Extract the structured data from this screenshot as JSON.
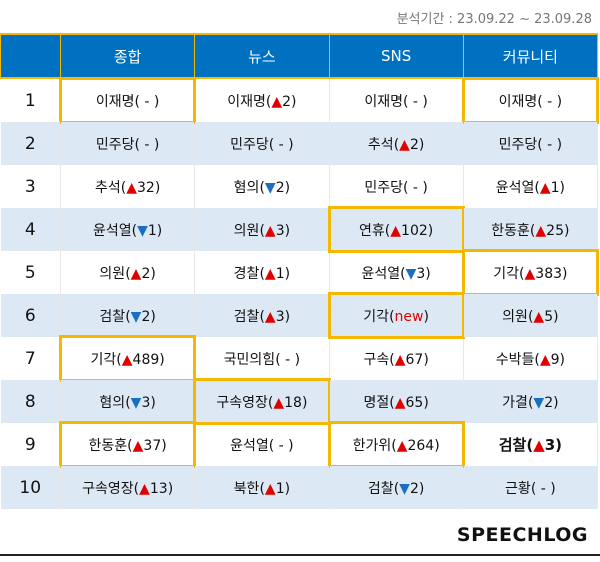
{
  "period": "분석기간 : 23.09.22 ~ 23.09.28",
  "headers": [
    "",
    "종합",
    "뉴스",
    "SNS",
    "커뮤니티"
  ],
  "rows": [
    {
      "rank": "1",
      "cells": [
        {
          "t": "이재명",
          "d": "none",
          "v": "",
          "hl": true
        },
        {
          "t": "이재명",
          "d": "up",
          "v": "2"
        },
        {
          "t": "이재명",
          "d": "none",
          "v": ""
        },
        {
          "t": "이재명",
          "d": "none",
          "v": "",
          "hl": true
        }
      ]
    },
    {
      "rank": "2",
      "cells": [
        {
          "t": "민주당",
          "d": "none",
          "v": ""
        },
        {
          "t": "민주당",
          "d": "none",
          "v": ""
        },
        {
          "t": "추석",
          "d": "up",
          "v": "2"
        },
        {
          "t": "민주당",
          "d": "none",
          "v": ""
        }
      ]
    },
    {
      "rank": "3",
      "cells": [
        {
          "t": "추석",
          "d": "up",
          "v": "32"
        },
        {
          "t": "혐의",
          "d": "down",
          "v": "2"
        },
        {
          "t": "민주당",
          "d": "none",
          "v": ""
        },
        {
          "t": "윤석열",
          "d": "up",
          "v": "1"
        }
      ]
    },
    {
      "rank": "4",
      "cells": [
        {
          "t": "윤석열",
          "d": "down",
          "v": "1"
        },
        {
          "t": "의원",
          "d": "up",
          "v": "3"
        },
        {
          "t": "연휴",
          "d": "up",
          "v": "102",
          "hl": true
        },
        {
          "t": "한동훈",
          "d": "up",
          "v": "25"
        }
      ]
    },
    {
      "rank": "5",
      "cells": [
        {
          "t": "의원",
          "d": "up",
          "v": "2"
        },
        {
          "t": "경찰",
          "d": "up",
          "v": "1"
        },
        {
          "t": "윤석열",
          "d": "down",
          "v": "3"
        },
        {
          "t": "기각",
          "d": "up",
          "v": "383",
          "hl": true
        }
      ]
    },
    {
      "rank": "6",
      "cells": [
        {
          "t": "검찰",
          "d": "down",
          "v": "2"
        },
        {
          "t": "검찰",
          "d": "up",
          "v": "3"
        },
        {
          "t": "기각",
          "d": "new",
          "v": "new",
          "hl": true
        },
        {
          "t": "의원",
          "d": "up",
          "v": "5"
        }
      ]
    },
    {
      "rank": "7",
      "cells": [
        {
          "t": "기각",
          "d": "up",
          "v": "489",
          "hl": true
        },
        {
          "t": "국민의힘",
          "d": "none",
          "v": ""
        },
        {
          "t": "구속",
          "d": "up",
          "v": "67"
        },
        {
          "t": "수박들",
          "d": "up",
          "v": "9"
        }
      ]
    },
    {
      "rank": "8",
      "cells": [
        {
          "t": "혐의",
          "d": "down",
          "v": "3"
        },
        {
          "t": "구속영장",
          "d": "up",
          "v": "18",
          "hl": true
        },
        {
          "t": "명절",
          "d": "up",
          "v": "65"
        },
        {
          "t": "가결",
          "d": "down",
          "v": "2"
        }
      ]
    },
    {
      "rank": "9",
      "cells": [
        {
          "t": "한동훈",
          "d": "up",
          "v": "37",
          "hl": true
        },
        {
          "t": "윤석열",
          "d": "none",
          "v": ""
        },
        {
          "t": "한가위",
          "d": "up",
          "v": "264",
          "hl": true
        },
        {
          "t": "검찰",
          "d": "up",
          "v": "3",
          "bold": true
        }
      ]
    },
    {
      "rank": "10",
      "cells": [
        {
          "t": "구속영장",
          "d": "up",
          "v": "13"
        },
        {
          "t": "북한",
          "d": "up",
          "v": "1"
        },
        {
          "t": "검찰",
          "d": "down",
          "v": "2"
        },
        {
          "t": "근황",
          "d": "none",
          "v": ""
        }
      ]
    }
  ],
  "logo": "SPEECHLOG",
  "colors": {
    "header": "#0070c0",
    "highlight": "#f5b800",
    "up": "#e00000",
    "down": "#1a6fc0",
    "stripe": "#dde8f5"
  }
}
